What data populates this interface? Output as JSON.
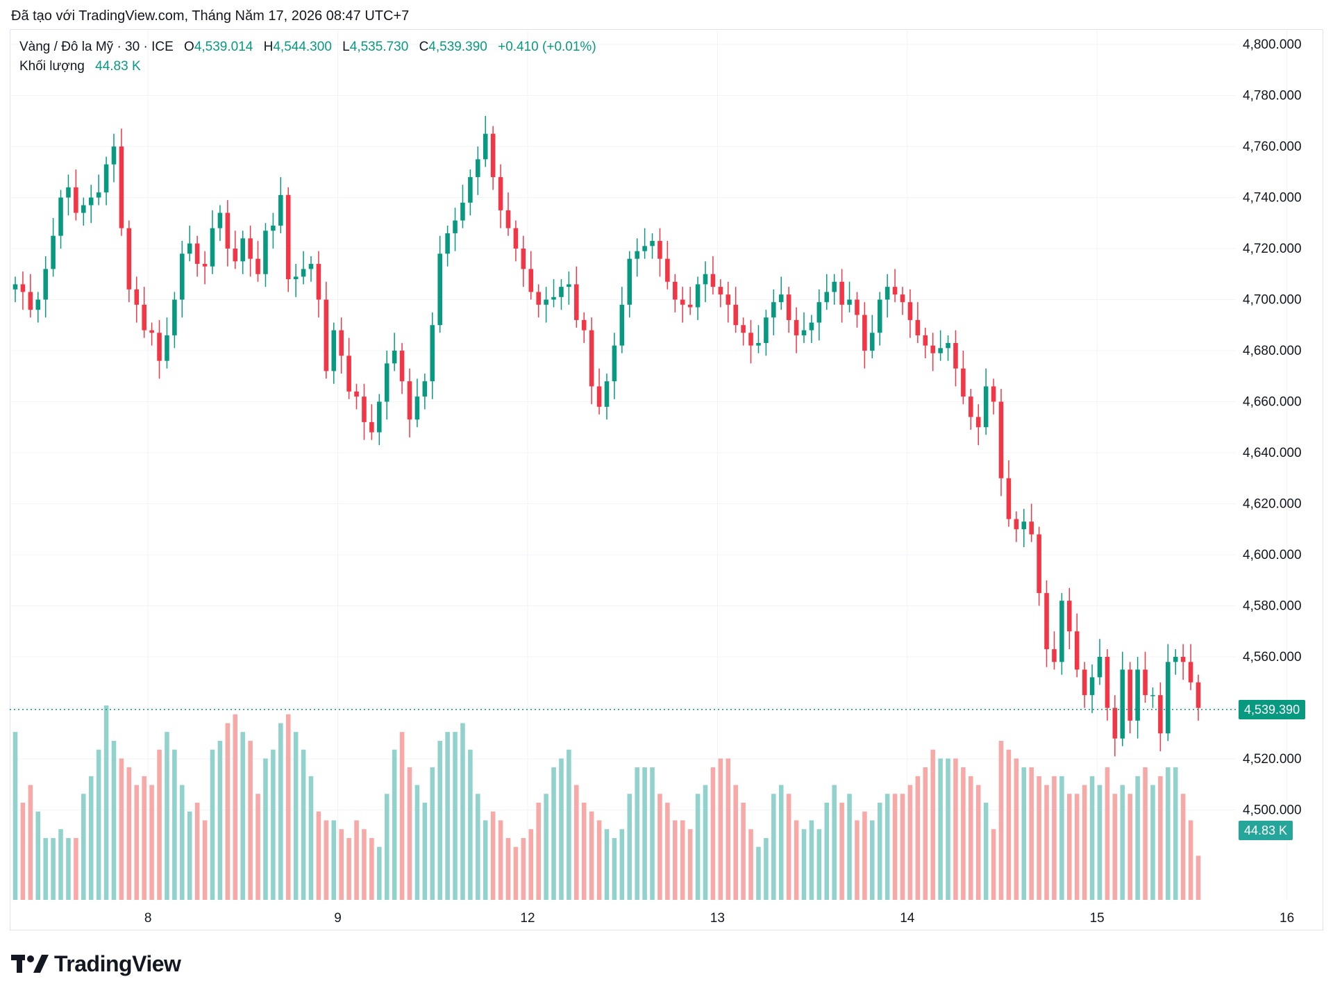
{
  "header": {
    "caption": "Đã tạo với TradingView.com, Tháng Năm 17, 2026 08:47 UTC+7"
  },
  "legend": {
    "symbol": "Vàng / Đô la Mỹ · 30 · ICE",
    "o_label": "O",
    "o_value": "4,539.014",
    "h_label": "H",
    "h_value": "4,544.300",
    "l_label": "L",
    "l_value": "4,535.730",
    "c_label": "C",
    "c_value": "4,539.390",
    "change": "+0.410 (+0.01%)",
    "volume_label": "Khối lượng",
    "volume_value": "44.83 K"
  },
  "last_price_tag": "4,539.390",
  "volume_tag": "44.83 K",
  "footer": {
    "brand": "TradingView"
  },
  "colors": {
    "up": "#089981",
    "down": "#f23645",
    "up_volume": "#92d2cc",
    "down_volume": "#f7a9a7",
    "grid": "#f0f3fa"
  },
  "chart_data": {
    "type": "candlestick",
    "ylim": [
      4480,
      4800
    ],
    "y_ticks": [
      "4,800.000",
      "4,780.000",
      "4,760.000",
      "4,740.000",
      "4,720.000",
      "4,700.000",
      "4,680.000",
      "4,660.000",
      "4,640.000",
      "4,620.000",
      "4,600.000",
      "4,580.000",
      "4,560.000",
      "4,540.000",
      "4,520.000",
      "4,500.000"
    ],
    "y_tick_values": [
      4800,
      4780,
      4760,
      4740,
      4720,
      4700,
      4680,
      4660,
      4640,
      4620,
      4600,
      4580,
      4560,
      4540,
      4520,
      4500
    ],
    "x_ticks": [
      "8",
      "9",
      "12",
      "13",
      "14",
      "15",
      "16"
    ],
    "last_price": 4539.39,
    "series": [
      {
        "name": "Vàng / Đô la Mỹ",
        "close": [
          4706,
          4703,
          4696,
          4700,
          4712,
          4725,
          4740,
          4744,
          4734,
          4737,
          4740,
          4742,
          4753,
          4760,
          4728,
          4704,
          4698,
          4688,
          4687,
          4676,
          4686,
          4700,
          4718,
          4722,
          4714,
          4713,
          4728,
          4734,
          4720,
          4715,
          4724,
          4716,
          4710,
          4727,
          4729,
          4741,
          4708,
          4709,
          4712,
          4714,
          4700,
          4672,
          4688,
          4678,
          4664,
          4662,
          4652,
          4648,
          4660,
          4675,
          4680,
          4668,
          4653,
          4662,
          4668,
          4690,
          4718,
          4726,
          4731,
          4738,
          4748,
          4755,
          4765,
          4748,
          4735,
          4728,
          4720,
          4712,
          4703,
          4698,
          4700,
          4701,
          4705,
          4706,
          4692,
          4688,
          4666,
          4658,
          4668,
          4682,
          4698,
          4716,
          4719,
          4721,
          4723,
          4716,
          4707,
          4700,
          4698,
          4697,
          4706,
          4710,
          4705,
          4702,
          4698,
          4690,
          4687,
          4682,
          4683,
          4693,
          4699,
          4702,
          4692,
          4686,
          4688,
          4691,
          4699,
          4703,
          4707,
          4698,
          4700,
          4694,
          4680,
          4687,
          4700,
          4705,
          4702,
          4699,
          4692,
          4686,
          4682,
          4679,
          4681,
          4683,
          4673,
          4662,
          4654,
          4650,
          4666,
          4660,
          4630,
          4614,
          4610,
          4613,
          4608,
          4585,
          4563,
          4558,
          4582,
          4570,
          4555,
          4545,
          4552,
          4560,
          4540,
          4528,
          4555,
          4535,
          4555,
          4545,
          4545,
          4530,
          4558,
          4560,
          4558,
          4550,
          4540
        ]
      },
      {
        "name": "Khối lượng",
        "volume": [
          19,
          11,
          13,
          10,
          7,
          7,
          8,
          7,
          7,
          12,
          14,
          17,
          22,
          18,
          16,
          15,
          13,
          14,
          13,
          17,
          19,
          17,
          13,
          10,
          11,
          9,
          17,
          18,
          20,
          21,
          19,
          18,
          12,
          16,
          17,
          20,
          21,
          19,
          17,
          14,
          10,
          9,
          9,
          8,
          7,
          9,
          8,
          7,
          6,
          12,
          17,
          19,
          15,
          13,
          11,
          15,
          18,
          19,
          19,
          20,
          17,
          12,
          9,
          10,
          9,
          7,
          6,
          7,
          8,
          11,
          12,
          15,
          16,
          17,
          13,
          11,
          10,
          9,
          8,
          7,
          8,
          12,
          15,
          15,
          15,
          12,
          11,
          9,
          9,
          8,
          12,
          13,
          15,
          16,
          16,
          13,
          11,
          8,
          6,
          7,
          12,
          13,
          12,
          9,
          8,
          9,
          8,
          11,
          13,
          11,
          12,
          9,
          10,
          9,
          11,
          12,
          12,
          12,
          13,
          14,
          15,
          17,
          16,
          16,
          16,
          15,
          14,
          13,
          11,
          8,
          18,
          17,
          16,
          15,
          15,
          14,
          13,
          14,
          14,
          12,
          12,
          13,
          14,
          13,
          15,
          12,
          13,
          12,
          14,
          15,
          13,
          14,
          15,
          15,
          12,
          9,
          5
        ]
      }
    ]
  }
}
